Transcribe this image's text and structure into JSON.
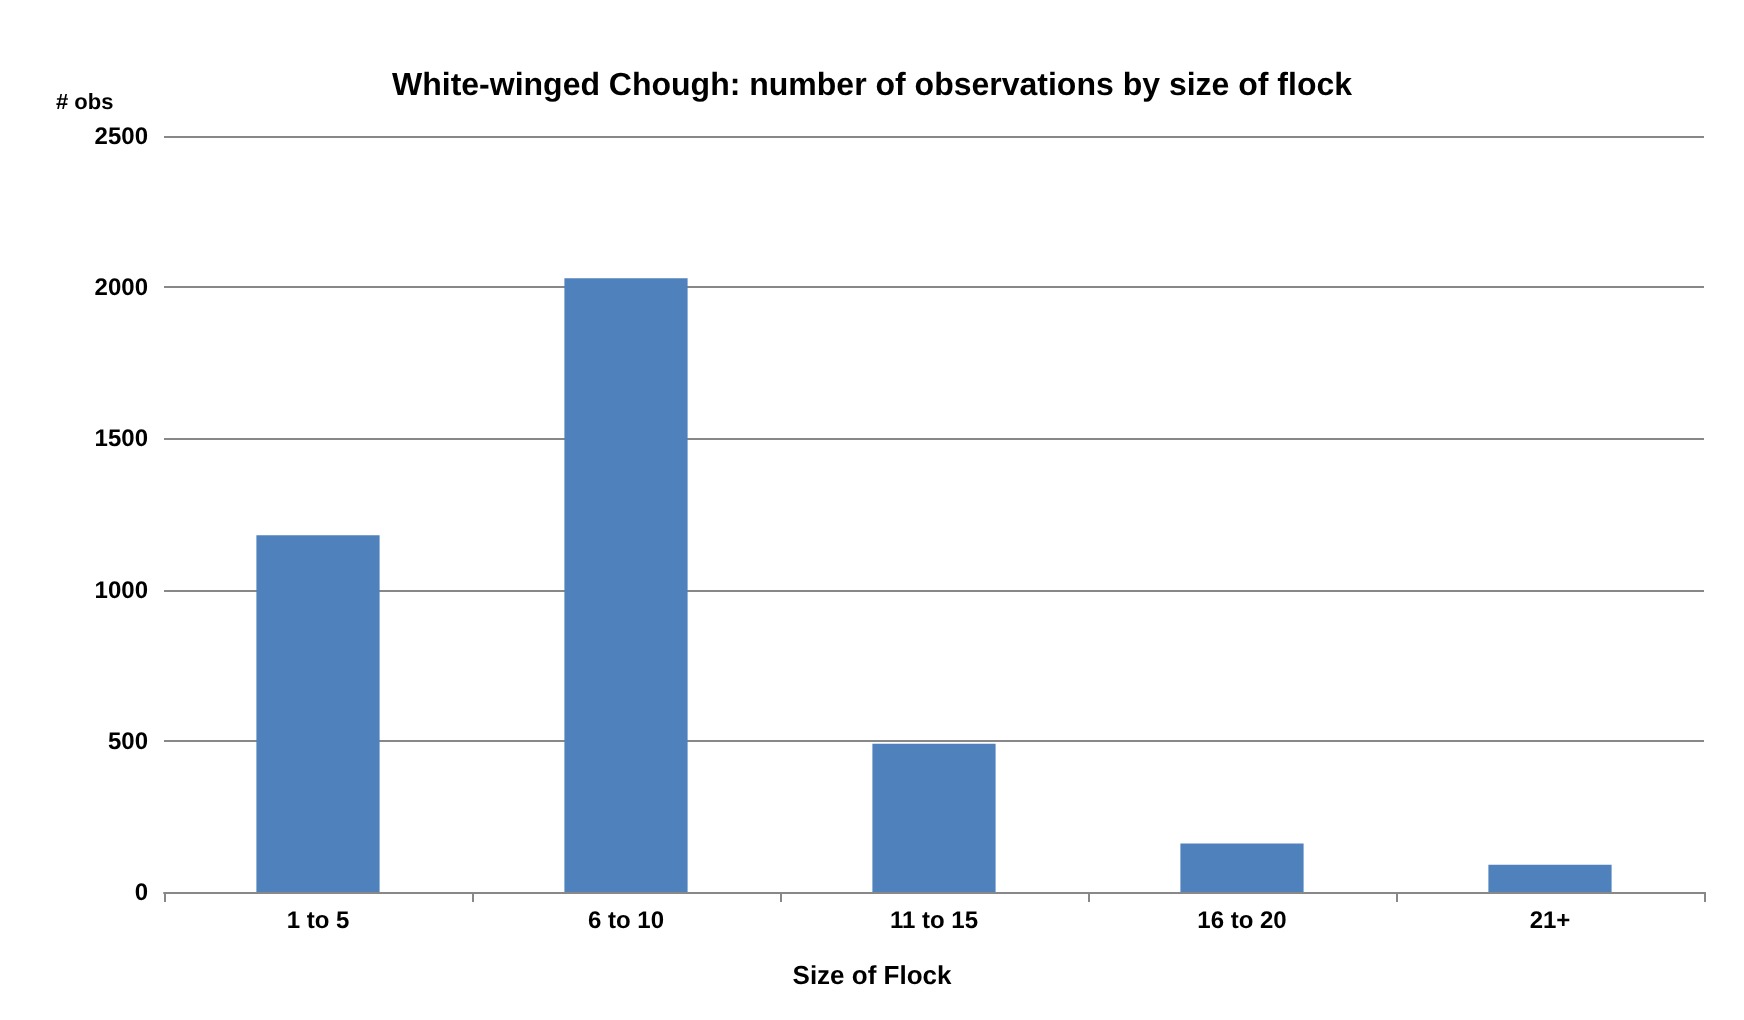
{
  "chart_data": {
    "type": "bar",
    "title": "White-winged Chough: number of observations by size of flock",
    "xlabel": "Size of Flock",
    "ylabel": "# obs",
    "categories": [
      "1 to 5",
      "6 to 10",
      "11 to 15",
      "16 to 20",
      "21+"
    ],
    "values": [
      1180,
      2030,
      490,
      160,
      90
    ],
    "color": "#4f81bd",
    "ylim": [
      0,
      2500
    ],
    "yticks": [
      0,
      500,
      1000,
      1500,
      2000,
      2500
    ],
    "grid": "y"
  }
}
